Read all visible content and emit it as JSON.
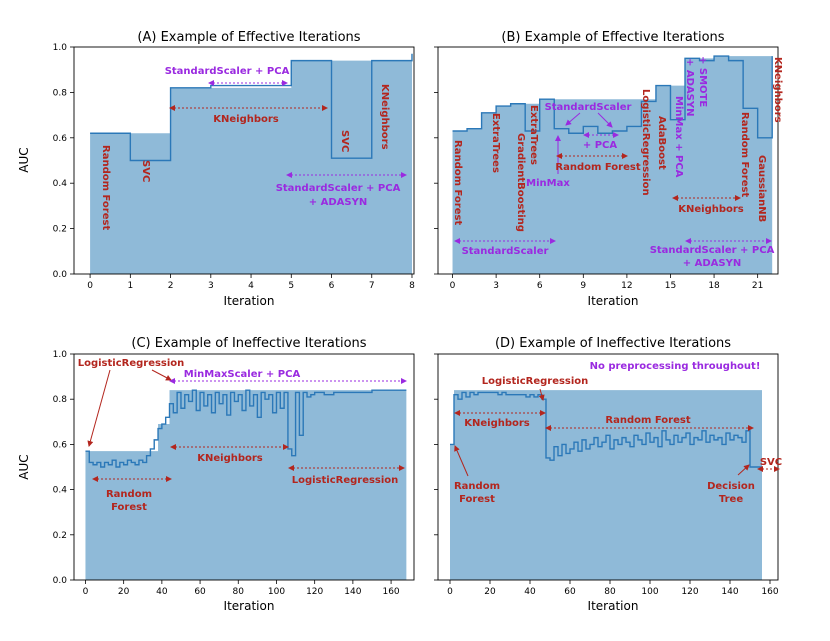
{
  "chart_data": [
    {
      "type": "step-area",
      "title": "(A) Example of Effective Iterations",
      "xlabel": "Iteration",
      "ylabel": "AUC",
      "xlim": [
        -0.4,
        8.05
      ],
      "ylim": [
        0,
        1.0
      ],
      "xticks": [
        0,
        1,
        2,
        3,
        4,
        5,
        6,
        7,
        8
      ],
      "yticks": [
        0.0,
        0.2,
        0.4,
        0.6,
        0.8,
        1.0
      ],
      "fill_level": 0.94,
      "series": [
        {
          "name": "AUC per iteration",
          "x": [
            0,
            1,
            2,
            3,
            4,
            5,
            6,
            7,
            8
          ],
          "values": [
            0.62,
            0.5,
            0.82,
            0.83,
            0.83,
            0.94,
            0.51,
            0.94,
            0.97
          ]
        }
      ],
      "annotations": [
        {
          "text": "Random Forest",
          "color": "red",
          "rotated": true
        },
        {
          "text": "SVC",
          "color": "red",
          "rotated": true
        },
        {
          "text": "StandardScaler + PCA",
          "color": "purple",
          "span": [
            3,
            5
          ]
        },
        {
          "text": "KNeighbors",
          "color": "red",
          "span": [
            2,
            6
          ]
        },
        {
          "text": "SVC",
          "color": "red",
          "rotated": true
        },
        {
          "text": "KNeighbors",
          "color": "red",
          "rotated": true
        },
        {
          "text": "StandardScaler + PCA",
          "color": "purple",
          "span": [
            5,
            8
          ]
        },
        {
          "text": "+ ADASYN",
          "color": "purple"
        }
      ]
    },
    {
      "type": "step-area",
      "title": "(B) Example of Effective Iterations",
      "xlabel": "Iteration",
      "ylabel": "",
      "xlim": [
        -1.0,
        22.4
      ],
      "ylim": [
        0,
        1.0
      ],
      "xticks": [
        0,
        3,
        6,
        9,
        12,
        15,
        18,
        21
      ],
      "yticks": [
        0.0,
        0.2,
        0.4,
        0.6,
        0.8,
        1.0
      ],
      "series": [
        {
          "name": "AUC per iteration",
          "x": [
            0,
            1,
            2,
            3,
            4,
            5,
            6,
            7,
            8,
            9,
            10,
            11,
            12,
            13,
            14,
            15,
            16,
            17,
            18,
            19,
            20,
            21,
            22
          ],
          "values": [
            0.63,
            0.64,
            0.71,
            0.74,
            0.75,
            0.63,
            0.77,
            0.64,
            0.62,
            0.65,
            0.62,
            0.63,
            0.65,
            0.76,
            0.83,
            0.68,
            0.95,
            0.94,
            0.96,
            0.94,
            0.73,
            0.6,
            0.96
          ]
        }
      ],
      "annotations": [
        {
          "text": "Random Forest",
          "color": "red",
          "rotated": true
        },
        {
          "text": "ExtraTrees",
          "color": "red",
          "rotated": true
        },
        {
          "text": "GradientBoosting",
          "color": "red",
          "rotated": true
        },
        {
          "text": "ExtraTrees",
          "color": "red",
          "rotated": true
        },
        {
          "text": "MinMax",
          "color": "purple"
        },
        {
          "text": "StandardScaler",
          "color": "purple"
        },
        {
          "text": "+ PCA",
          "color": "purple"
        },
        {
          "text": "Random Forest",
          "color": "red"
        },
        {
          "text": "LogisticRegression",
          "color": "red",
          "rotated": true
        },
        {
          "text": "AdaBoost",
          "color": "red",
          "rotated": true
        },
        {
          "text": "MinMax + PCA",
          "color": "purple",
          "rotated": true
        },
        {
          "text": "+ ADASYN",
          "color": "purple",
          "rotated": true
        },
        {
          "text": "+ SMOTE",
          "color": "purple",
          "rotated": true
        },
        {
          "text": "Random Forest",
          "color": "red",
          "rotated": true
        },
        {
          "text": "GaussianNB",
          "color": "red",
          "rotated": true
        },
        {
          "text": "KNeighbors",
          "color": "red",
          "rotated": true
        },
        {
          "text": "KNeighbors",
          "color": "red",
          "span": [
            16,
            20
          ]
        },
        {
          "text": "StandardScaler",
          "color": "purple",
          "span": [
            0,
            6
          ]
        },
        {
          "text": "StandardScaler + PCA",
          "color": "purple",
          "span": [
            16,
            22
          ]
        },
        {
          "text": "+ ADASYN",
          "color": "purple"
        }
      ]
    },
    {
      "type": "step-area",
      "title": "(C) Example of Ineffective Iterations",
      "xlabel": "Iteration",
      "ylabel": "AUC",
      "xlim": [
        -6,
        172
      ],
      "ylim": [
        0,
        1.0
      ],
      "xticks": [
        0,
        20,
        40,
        60,
        80,
        100,
        120,
        140,
        160
      ],
      "yticks": [
        0.0,
        0.2,
        0.4,
        0.6,
        0.8,
        1.0
      ],
      "fill_level": 0.84,
      "series": [
        {
          "name": "AUC per iteration",
          "x": [
            0,
            2,
            4,
            6,
            8,
            10,
            12,
            14,
            16,
            18,
            20,
            22,
            24,
            26,
            28,
            30,
            32,
            34,
            36,
            38,
            40,
            42,
            44,
            46,
            48,
            50,
            52,
            54,
            56,
            58,
            60,
            62,
            64,
            66,
            68,
            70,
            72,
            74,
            76,
            78,
            80,
            82,
            84,
            86,
            88,
            90,
            92,
            94,
            96,
            98,
            100,
            102,
            104,
            106,
            108,
            110,
            112,
            114,
            116,
            118,
            120,
            125,
            130,
            135,
            140,
            145,
            150,
            155,
            160,
            168
          ],
          "values": [
            0.57,
            0.52,
            0.51,
            0.52,
            0.5,
            0.52,
            0.51,
            0.53,
            0.5,
            0.52,
            0.51,
            0.53,
            0.52,
            0.51,
            0.53,
            0.52,
            0.55,
            0.58,
            0.62,
            0.67,
            0.69,
            0.72,
            0.78,
            0.74,
            0.83,
            0.76,
            0.82,
            0.79,
            0.84,
            0.75,
            0.83,
            0.77,
            0.82,
            0.74,
            0.83,
            0.78,
            0.82,
            0.73,
            0.83,
            0.79,
            0.82,
            0.75,
            0.84,
            0.77,
            0.82,
            0.72,
            0.83,
            0.8,
            0.82,
            0.74,
            0.83,
            0.76,
            0.83,
            0.58,
            0.55,
            0.83,
            0.64,
            0.83,
            0.81,
            0.82,
            0.83,
            0.82,
            0.83,
            0.83,
            0.83,
            0.83,
            0.84,
            0.84,
            0.84,
            0.84
          ]
        }
      ],
      "annotations": [
        {
          "text": "LogisticRegression",
          "color": "red"
        },
        {
          "text": "MinMaxScaler + PCA",
          "color": "purple",
          "span": [
            44,
            168
          ]
        },
        {
          "text": "KNeighbors",
          "color": "red",
          "span": [
            44,
            107
          ]
        },
        {
          "text": "Random Forest",
          "color": "red",
          "span": [
            2,
            44
          ]
        },
        {
          "text": "LogisticRegression",
          "color": "red",
          "span": [
            107,
            168
          ]
        }
      ]
    },
    {
      "type": "step-area",
      "title": "(D) Example of Ineffective Iterations",
      "xlabel": "Iteration",
      "ylabel": "",
      "xlim": [
        -6,
        164
      ],
      "ylim": [
        0,
        1.0
      ],
      "xticks": [
        0,
        20,
        40,
        60,
        80,
        100,
        120,
        140,
        160
      ],
      "yticks": [
        0.0,
        0.2,
        0.4,
        0.6,
        0.8,
        1.0
      ],
      "fill_level": 0.84,
      "series": [
        {
          "name": "AUC per iteration",
          "x": [
            0,
            2,
            4,
            6,
            8,
            10,
            12,
            14,
            16,
            18,
            20,
            22,
            24,
            26,
            28,
            30,
            32,
            34,
            36,
            38,
            40,
            42,
            44,
            46,
            48,
            50,
            52,
            54,
            56,
            58,
            60,
            62,
            64,
            66,
            68,
            70,
            72,
            74,
            76,
            78,
            80,
            82,
            84,
            86,
            88,
            90,
            92,
            94,
            96,
            98,
            100,
            102,
            104,
            106,
            108,
            110,
            112,
            114,
            116,
            118,
            120,
            122,
            124,
            126,
            128,
            130,
            132,
            134,
            136,
            138,
            140,
            142,
            144,
            146,
            148,
            150,
            152,
            154,
            156
          ],
          "values": [
            0.6,
            0.82,
            0.8,
            0.83,
            0.81,
            0.83,
            0.82,
            0.83,
            0.83,
            0.83,
            0.83,
            0.83,
            0.82,
            0.83,
            0.82,
            0.82,
            0.82,
            0.82,
            0.82,
            0.81,
            0.82,
            0.81,
            0.82,
            0.8,
            0.54,
            0.53,
            0.59,
            0.55,
            0.6,
            0.56,
            0.58,
            0.61,
            0.57,
            0.62,
            0.58,
            0.6,
            0.63,
            0.59,
            0.61,
            0.64,
            0.58,
            0.62,
            0.6,
            0.63,
            0.61,
            0.59,
            0.64,
            0.62,
            0.6,
            0.65,
            0.61,
            0.63,
            0.59,
            0.66,
            0.62,
            0.6,
            0.64,
            0.61,
            0.63,
            0.65,
            0.6,
            0.63,
            0.62,
            0.66,
            0.61,
            0.64,
            0.62,
            0.63,
            0.6,
            0.65,
            0.62,
            0.64,
            0.63,
            0.61,
            0.66,
            0.5,
            0.5,
            0.5,
            0.5
          ]
        }
      ],
      "annotations": [
        {
          "text": "No preprocessing throughout!",
          "color": "purple"
        },
        {
          "text": "LogisticRegression",
          "color": "red"
        },
        {
          "text": "KNeighbors",
          "color": "red",
          "span": [
            2,
            46
          ]
        },
        {
          "text": "Random Forest",
          "color": "red",
          "span": [
            46,
            150
          ]
        },
        {
          "text": "Random Forest",
          "color": "red"
        },
        {
          "text": "Decision Tree",
          "color": "red"
        },
        {
          "text": "SVC",
          "color": "red"
        }
      ]
    }
  ]
}
